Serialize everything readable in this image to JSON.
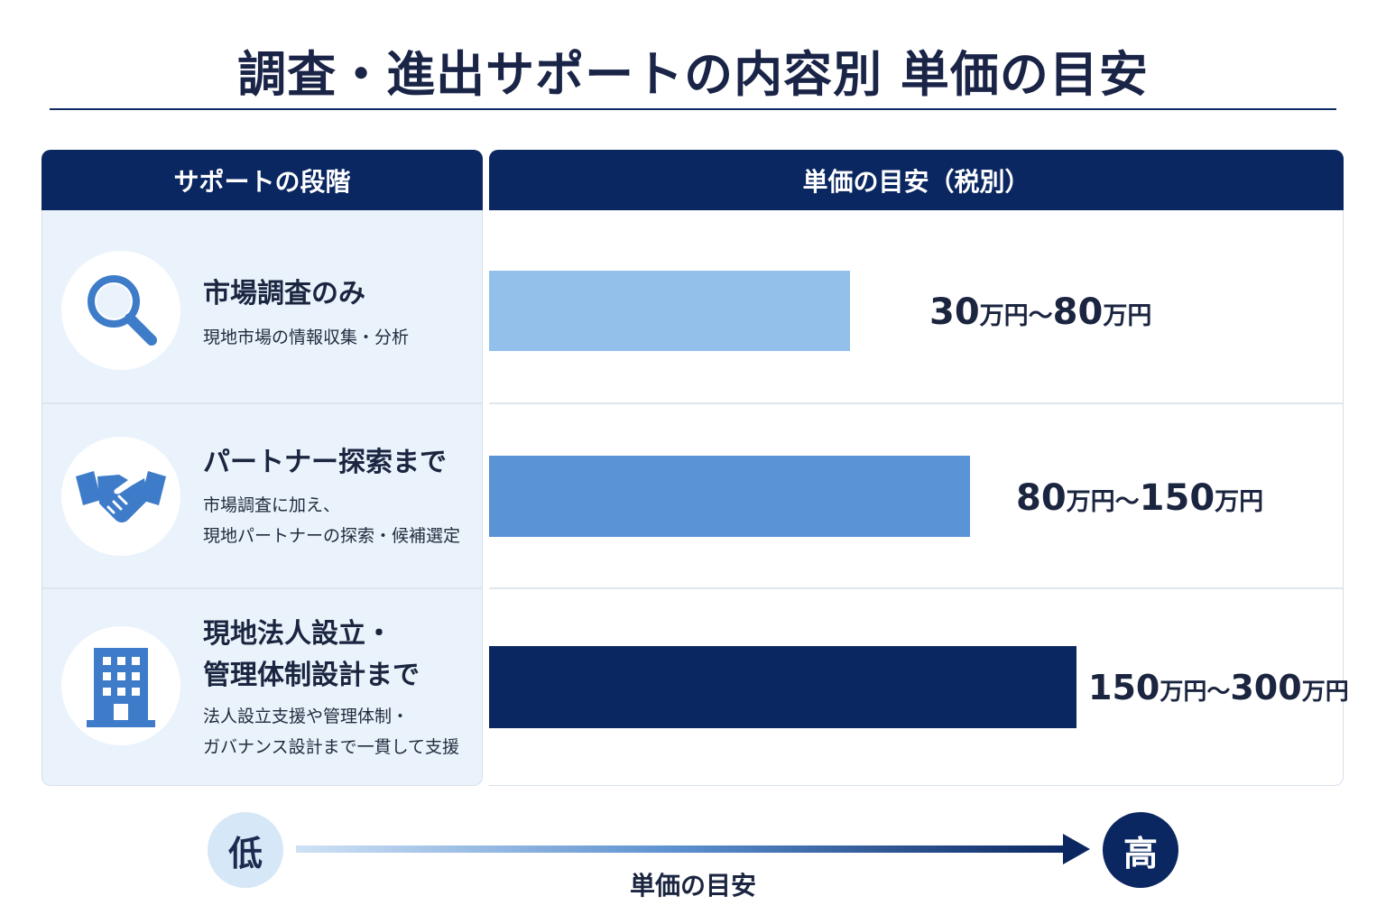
{
  "title": "調査・進出サポートの内容別 単価の目安",
  "header": {
    "left": "サポートの段階",
    "right": "単価の目安（税別）"
  },
  "stages": [
    {
      "title_lines": [
        "市場調査のみ"
      ],
      "desc_lines": [
        "現地市場の情報収集・分析"
      ],
      "icon": "magnifier-icon",
      "price_low": "30",
      "price_high": "80",
      "unit": "万円",
      "sep": "〜"
    },
    {
      "title_lines": [
        "パートナー探索まで"
      ],
      "desc_lines": [
        "市場調査に加え、",
        "現地パートナーの探索・候補選定"
      ],
      "icon": "handshake-icon",
      "price_low": "80",
      "price_high": "150",
      "unit": "万円",
      "sep": "〜"
    },
    {
      "title_lines": [
        "現地法人設立・",
        "管理体制設計まで"
      ],
      "desc_lines": [
        "法人設立支援や管理体制・",
        "ガバナンス設計まで一貫して支援"
      ],
      "icon": "building-icon",
      "price_low": "150",
      "price_high": "300",
      "unit": "万円",
      "sep": "〜"
    }
  ],
  "scale": {
    "low": "低",
    "high": "高",
    "label": "単価の目安"
  },
  "colors": {
    "navy": "#0b2761",
    "bar1": "#93c0ea",
    "bar2": "#5a94d6",
    "bar3": "#0b2761",
    "icon": "#3e7cc9"
  },
  "chart_data": {
    "type": "bar",
    "orientation": "horizontal",
    "categories": [
      "市場調査のみ",
      "パートナー探索まで",
      "現地法人設立・管理体制設計まで"
    ],
    "ranges": [
      [
        30,
        80
      ],
      [
        80,
        150
      ],
      [
        150,
        300
      ]
    ],
    "unit": "万円",
    "title": "調査・進出サポートの内容別 単価の目安"
  }
}
